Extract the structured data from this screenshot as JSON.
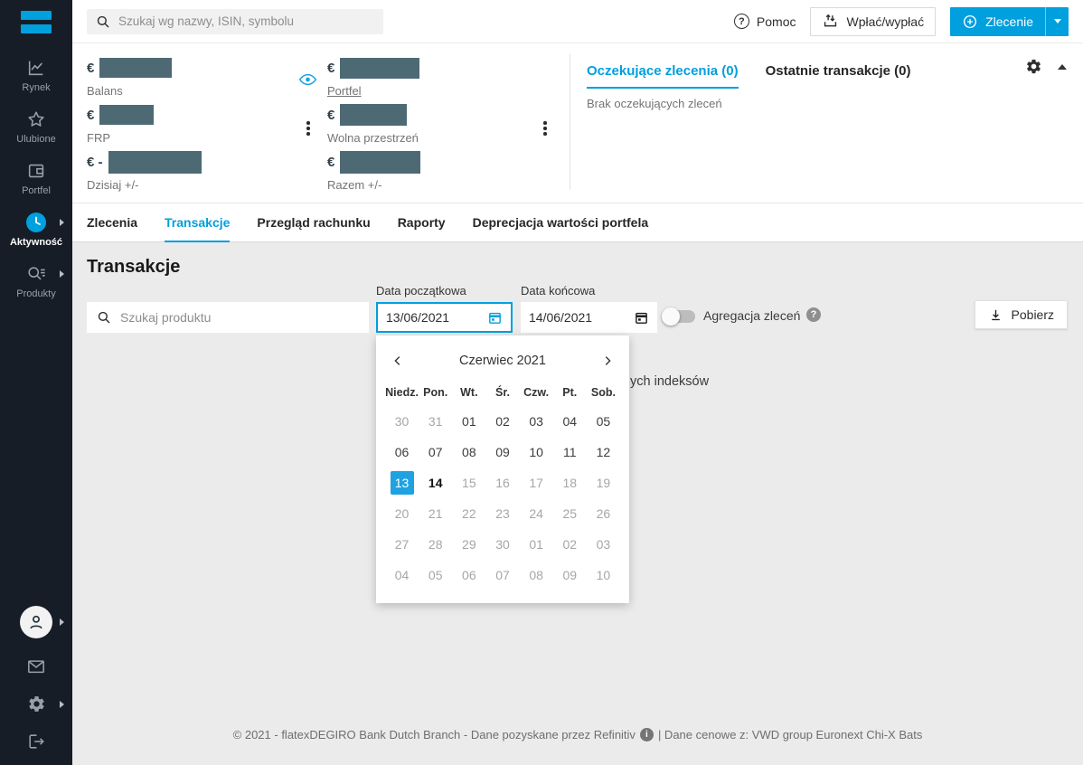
{
  "brand": {
    "accent": "#009fde",
    "sidebar_bg": "#161d27",
    "redaction_color": "#4d6a74"
  },
  "sidebar": {
    "nav": [
      {
        "label": "Rynek",
        "icon": "chart-line-icon",
        "active": false,
        "submenu": false
      },
      {
        "label": "Ulubione",
        "icon": "star-icon",
        "active": false,
        "submenu": false
      },
      {
        "label": "Portfel",
        "icon": "portfolio-icon",
        "active": false,
        "submenu": false
      },
      {
        "label": "Aktywność",
        "icon": "clock-icon",
        "active": true,
        "submenu": true
      },
      {
        "label": "Produkty",
        "icon": "search-products-icon",
        "active": false,
        "submenu": true
      }
    ],
    "bottom": [
      {
        "icon": "user-avatar-icon",
        "submenu": true
      },
      {
        "icon": "mail-icon",
        "submenu": false
      },
      {
        "icon": "gear-icon",
        "submenu": true
      },
      {
        "icon": "logout-icon",
        "submenu": false
      }
    ]
  },
  "topbar": {
    "search_placeholder": "Szukaj wg nazwy, ISIN, symbolu",
    "help_label": "Pomoc",
    "deposit_label": "Wpłać/wypłać",
    "order_label": "Zlecenie"
  },
  "summary": {
    "cells": [
      {
        "label": "Balans",
        "prefix": "€",
        "value_redacted": true
      },
      {
        "label": "Portfel",
        "prefix": "€",
        "value_redacted": true,
        "eye_toggle": true
      },
      {
        "label": "FRP",
        "prefix": "€",
        "value_redacted": true
      },
      {
        "label": "Wolna przestrzeń",
        "prefix": "€",
        "value_redacted": true
      },
      {
        "label": "Dzisiaj +/-",
        "prefix": "€ -",
        "value_redacted": true
      },
      {
        "label": "Razem +/-",
        "prefix": "€",
        "value_redacted": true
      }
    ]
  },
  "orders_panel": {
    "tabs": [
      {
        "label": "Oczekujące zlecenia (0)",
        "active": true
      },
      {
        "label": "Ostatnie transakcje (0)",
        "active": false
      }
    ],
    "empty_message": "Brak oczekujących zleceń"
  },
  "tabs": [
    {
      "label": "Zlecenia",
      "active": false
    },
    {
      "label": "Transakcje",
      "active": true
    },
    {
      "label": "Przegląd rachunku",
      "active": false
    },
    {
      "label": "Raporty",
      "active": false
    },
    {
      "label": "Deprecjacja wartości portfela",
      "active": false
    }
  ],
  "transactions": {
    "title": "Transakcje",
    "product_search_placeholder": "Szukaj produktu",
    "date_from": {
      "label": "Data początkowa",
      "value": "13/06/2021"
    },
    "date_to": {
      "label": "Data końcowa",
      "value": "14/06/2021"
    },
    "aggregation": {
      "label": "Agregacja zleceń",
      "enabled": false
    },
    "download_label": "Pobierz",
    "occluded_text_fragment": "ych indeksów"
  },
  "calendar": {
    "title": "Czerwiec 2021",
    "weekdays": [
      "Niedz.",
      "Pon.",
      "Wt.",
      "Śr.",
      "Czw.",
      "Pt.",
      "Sob."
    ],
    "selected_day": "13",
    "today": "14",
    "days": [
      {
        "label": "30",
        "state": "muted"
      },
      {
        "label": "31",
        "state": "muted"
      },
      {
        "label": "01",
        "state": "normal"
      },
      {
        "label": "02",
        "state": "normal"
      },
      {
        "label": "03",
        "state": "normal"
      },
      {
        "label": "04",
        "state": "normal"
      },
      {
        "label": "05",
        "state": "normal"
      },
      {
        "label": "06",
        "state": "normal"
      },
      {
        "label": "07",
        "state": "normal"
      },
      {
        "label": "08",
        "state": "normal"
      },
      {
        "label": "09",
        "state": "normal"
      },
      {
        "label": "10",
        "state": "normal"
      },
      {
        "label": "11",
        "state": "normal"
      },
      {
        "label": "12",
        "state": "normal"
      },
      {
        "label": "13",
        "state": "selected"
      },
      {
        "label": "14",
        "state": "today"
      },
      {
        "label": "15",
        "state": "muted"
      },
      {
        "label": "16",
        "state": "muted"
      },
      {
        "label": "17",
        "state": "muted"
      },
      {
        "label": "18",
        "state": "muted"
      },
      {
        "label": "19",
        "state": "muted"
      },
      {
        "label": "20",
        "state": "muted"
      },
      {
        "label": "21",
        "state": "muted"
      },
      {
        "label": "22",
        "state": "muted"
      },
      {
        "label": "23",
        "state": "muted"
      },
      {
        "label": "24",
        "state": "muted"
      },
      {
        "label": "25",
        "state": "muted"
      },
      {
        "label": "26",
        "state": "muted"
      },
      {
        "label": "27",
        "state": "muted"
      },
      {
        "label": "28",
        "state": "muted"
      },
      {
        "label": "29",
        "state": "muted"
      },
      {
        "label": "30",
        "state": "muted"
      },
      {
        "label": "01",
        "state": "muted"
      },
      {
        "label": "02",
        "state": "muted"
      },
      {
        "label": "03",
        "state": "muted"
      },
      {
        "label": "04",
        "state": "muted"
      },
      {
        "label": "05",
        "state": "muted"
      },
      {
        "label": "06",
        "state": "muted"
      },
      {
        "label": "07",
        "state": "muted"
      },
      {
        "label": "08",
        "state": "muted"
      },
      {
        "label": "09",
        "state": "muted"
      },
      {
        "label": "10",
        "state": "muted"
      }
    ]
  },
  "footer": {
    "text_left": "© 2021 - flatexDEGIRO Bank Dutch Branch - Dane pozyskane przez Refinitiv",
    "text_right": "| Dane cenowe z:  VWD group Euronext Chi-X Bats"
  }
}
